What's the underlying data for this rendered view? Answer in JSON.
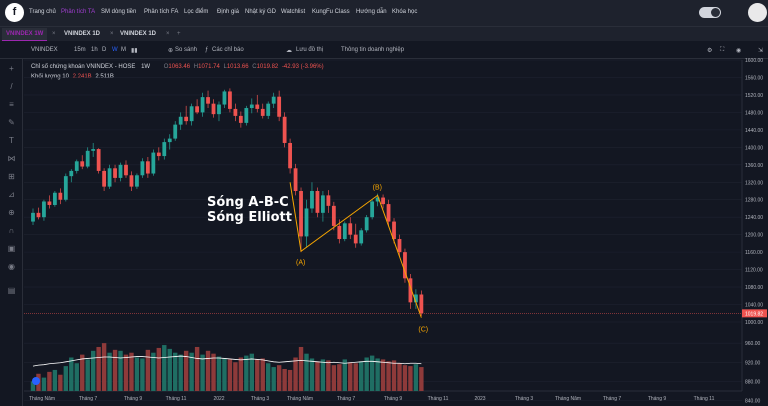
{
  "nav": {
    "logo": "f",
    "items": [
      "Trang chủ",
      "Phân tích TA",
      "SM dòng tiền",
      "Phân tích FA",
      "Lọc điểm",
      "Định giá",
      "Nhật ký GD",
      "Watchlist",
      "KungFu Class",
      "Hướng dẫn",
      "Khóa học"
    ],
    "active_index": 1
  },
  "tabs": [
    {
      "label": "VNINDEX 1W",
      "active": true
    },
    {
      "label": "VNINDEX 1D",
      "active": false
    },
    {
      "label": "VNINDEX 1D",
      "active": false
    }
  ],
  "tab_add": "+",
  "toolbar": {
    "symbol": "VNINDEX",
    "intervals": [
      "15m",
      "1h",
      "D",
      "W",
      "M"
    ],
    "selected_interval": "W",
    "compare": "So sánh",
    "indicators": "Các chỉ báo",
    "save": "Lưu đồ thị",
    "info": "Thông tin doanh nghiệp"
  },
  "legend": {
    "title": "Chỉ số chứng khoán VNINDEX - HOSE",
    "interval": "1W",
    "o_label": "O",
    "o": "1063.46",
    "h_label": "H",
    "h": "1071.74",
    "l_label": "L",
    "l": "1013.66",
    "c_label": "C",
    "c": "1019.82",
    "change": "-42.93 (-3.96%)",
    "vol_label": "Khối lượng 10",
    "vol_a": "2.241B",
    "vol_b": "2.511B"
  },
  "annotation": {
    "line1": "Sóng A-B-C",
    "line2": "Sóng Elliott"
  },
  "wave_labels": {
    "a": "(A)",
    "b": "(B)",
    "c": "(C)"
  },
  "colors": {
    "up": "#26a69a",
    "down": "#ef5350",
    "wave": "#f7a600",
    "accent": "#9c27b0",
    "bg": "#131722"
  },
  "chart_data": {
    "type": "candlestick",
    "title": "Chỉ số chứng khoán VNINDEX - HOSE",
    "interval": "1W",
    "x_ticks": [
      "Tháng Năm",
      "Tháng 7",
      "Tháng 9",
      "Tháng 11",
      "2022",
      "Tháng 3",
      "Tháng Năm",
      "Tháng 7",
      "Tháng 9",
      "Tháng 11",
      "2023",
      "Tháng 3",
      "Tháng Năm",
      "Tháng 7",
      "Tháng 9",
      "Tháng 11"
    ],
    "y_ticks": [
      1600,
      1560,
      1520,
      1480,
      1440,
      1400,
      1360,
      1320,
      1280,
      1240,
      1200,
      1160,
      1120,
      1080,
      1040,
      1000
    ],
    "ylim": [
      1000,
      1600
    ],
    "last_price": "1019.82",
    "volume_axis_ticks": [
      960,
      920,
      880,
      840
    ],
    "vol_ylim": [
      860,
      1000
    ],
    "ohlc": [
      [
        1230,
        1260,
        1222,
        1250
      ],
      [
        1250,
        1262,
        1235,
        1240
      ],
      [
        1240,
        1280,
        1232,
        1276
      ],
      [
        1276,
        1290,
        1260,
        1268
      ],
      [
        1268,
        1300,
        1264,
        1296
      ],
      [
        1296,
        1306,
        1270,
        1280
      ],
      [
        1280,
        1340,
        1276,
        1334
      ],
      [
        1334,
        1350,
        1320,
        1346
      ],
      [
        1346,
        1372,
        1340,
        1368
      ],
      [
        1368,
        1382,
        1350,
        1356
      ],
      [
        1356,
        1400,
        1352,
        1392
      ],
      [
        1392,
        1410,
        1378,
        1396
      ],
      [
        1396,
        1398,
        1340,
        1346
      ],
      [
        1346,
        1352,
        1300,
        1310
      ],
      [
        1310,
        1360,
        1305,
        1352
      ],
      [
        1352,
        1360,
        1320,
        1330
      ],
      [
        1330,
        1365,
        1322,
        1360
      ],
      [
        1360,
        1370,
        1330,
        1336
      ],
      [
        1336,
        1345,
        1300,
        1310
      ],
      [
        1310,
        1340,
        1305,
        1336
      ],
      [
        1336,
        1375,
        1330,
        1368
      ],
      [
        1368,
        1378,
        1330,
        1340
      ],
      [
        1340,
        1395,
        1335,
        1388
      ],
      [
        1388,
        1400,
        1370,
        1380
      ],
      [
        1380,
        1420,
        1372,
        1412
      ],
      [
        1412,
        1430,
        1395,
        1420
      ],
      [
        1420,
        1460,
        1415,
        1452
      ],
      [
        1452,
        1480,
        1440,
        1470
      ],
      [
        1470,
        1495,
        1452,
        1460
      ],
      [
        1460,
        1500,
        1450,
        1494
      ],
      [
        1494,
        1510,
        1476,
        1480
      ],
      [
        1480,
        1525,
        1470,
        1515
      ],
      [
        1515,
        1530,
        1490,
        1500
      ],
      [
        1500,
        1510,
        1468,
        1476
      ],
      [
        1476,
        1505,
        1460,
        1498
      ],
      [
        1498,
        1532,
        1490,
        1528
      ],
      [
        1528,
        1535,
        1480,
        1488
      ],
      [
        1488,
        1500,
        1460,
        1472
      ],
      [
        1472,
        1482,
        1445,
        1456
      ],
      [
        1456,
        1495,
        1450,
        1490
      ],
      [
        1490,
        1512,
        1478,
        1498
      ],
      [
        1498,
        1520,
        1480,
        1488
      ],
      [
        1488,
        1500,
        1466,
        1472
      ],
      [
        1472,
        1505,
        1465,
        1500
      ],
      [
        1500,
        1525,
        1490,
        1516
      ],
      [
        1516,
        1530,
        1460,
        1470
      ],
      [
        1470,
        1480,
        1400,
        1410
      ],
      [
        1410,
        1420,
        1340,
        1352
      ],
      [
        1352,
        1362,
        1290,
        1300
      ],
      [
        1300,
        1308,
        1160,
        1196
      ],
      [
        1196,
        1280,
        1170,
        1260
      ],
      [
        1260,
        1320,
        1250,
        1300
      ],
      [
        1300,
        1308,
        1240,
        1250
      ],
      [
        1250,
        1300,
        1230,
        1290
      ],
      [
        1290,
        1302,
        1250,
        1266
      ],
      [
        1266,
        1275,
        1210,
        1220
      ],
      [
        1220,
        1235,
        1180,
        1190
      ],
      [
        1190,
        1230,
        1185,
        1226
      ],
      [
        1226,
        1240,
        1190,
        1200
      ],
      [
        1200,
        1225,
        1170,
        1180
      ],
      [
        1180,
        1215,
        1175,
        1210
      ],
      [
        1210,
        1245,
        1205,
        1240
      ],
      [
        1240,
        1280,
        1235,
        1276
      ],
      [
        1276,
        1294,
        1265,
        1285
      ],
      [
        1285,
        1292,
        1260,
        1270
      ],
      [
        1270,
        1280,
        1220,
        1230
      ],
      [
        1230,
        1238,
        1180,
        1190
      ],
      [
        1190,
        1200,
        1150,
        1160
      ],
      [
        1160,
        1168,
        1090,
        1100
      ],
      [
        1100,
        1110,
        1030,
        1045
      ],
      [
        1045,
        1075,
        1030,
        1063
      ],
      [
        1063,
        1072,
        1014,
        1020
      ]
    ],
    "volume": [
      880,
      896,
      888,
      900,
      904,
      894,
      912,
      930,
      918,
      936,
      926,
      944,
      952,
      960,
      940,
      946,
      944,
      936,
      940,
      930,
      928,
      946,
      940,
      950,
      956,
      948,
      940,
      936,
      944,
      940,
      952,
      936,
      944,
      938,
      932,
      928,
      926,
      920,
      930,
      934,
      938,
      926,
      928,
      918,
      910,
      914,
      906,
      904,
      930,
      952,
      938,
      928,
      922,
      926,
      924,
      914,
      916,
      926,
      920,
      918,
      922,
      930,
      934,
      928,
      926,
      922,
      924,
      918,
      914,
      912,
      916,
      910
    ],
    "volume_ma": [
      912,
      914,
      915,
      917,
      918,
      919,
      921,
      923,
      925,
      927,
      928,
      929,
      930,
      931,
      931,
      930,
      929,
      930,
      931,
      932,
      932,
      931,
      930,
      929,
      930,
      931,
      932,
      933,
      932,
      930,
      928,
      927,
      928,
      929,
      929,
      928,
      927,
      926,
      925,
      926,
      927,
      926,
      925,
      923,
      921,
      920,
      921,
      922,
      923,
      924,
      923,
      922,
      921,
      920,
      919,
      920,
      919,
      918,
      919,
      920,
      921,
      922,
      922,
      921,
      920,
      919,
      918,
      918,
      917,
      918,
      918,
      917
    ],
    "wave": [
      {
        "label": "start",
        "x": 47,
        "y": 1320
      },
      {
        "label": "(A)",
        "x": 49,
        "y": 1162
      },
      {
        "label": "(B)",
        "x": 63,
        "y": 1290
      },
      {
        "label": "(C)",
        "x": 71,
        "y": 1010
      }
    ]
  }
}
